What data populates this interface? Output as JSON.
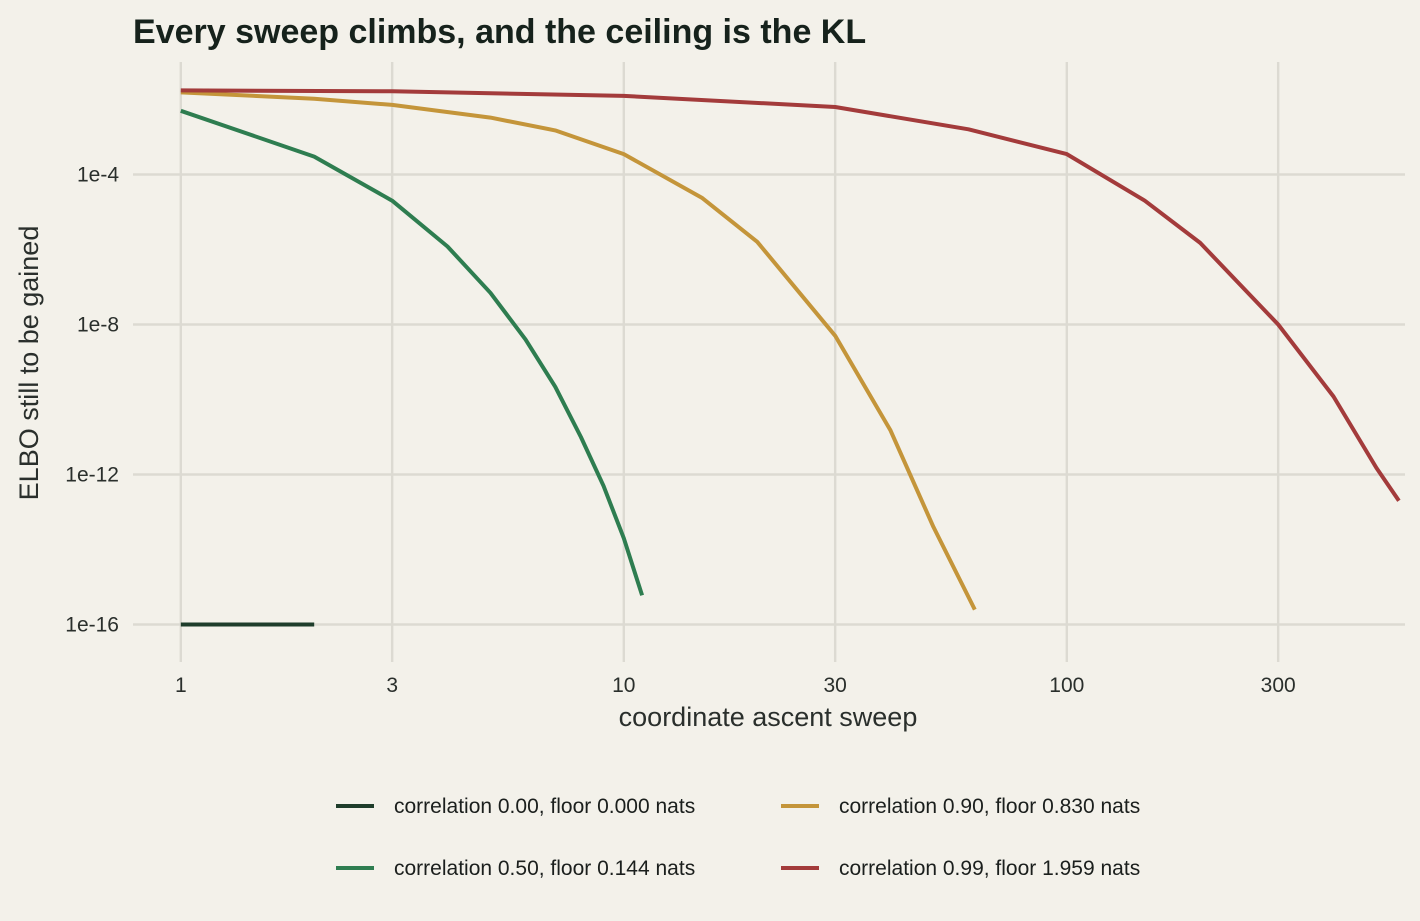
{
  "chart_data": {
    "type": "line",
    "title": "Every sweep climbs, and the ceiling is the KL",
    "xlabel": "coordinate ascent sweep",
    "ylabel": "ELBO still to be gained",
    "x_scale": "log",
    "y_scale": "log",
    "xlim": [
      0.78,
      580
    ],
    "ylim": [
      1e-17,
      0.1
    ],
    "x_ticks": [
      {
        "value": 1,
        "label": "1"
      },
      {
        "value": 3,
        "label": "3"
      },
      {
        "value": 10,
        "label": "10"
      },
      {
        "value": 30,
        "label": "30"
      },
      {
        "value": 100,
        "label": "100"
      },
      {
        "value": 300,
        "label": "300"
      }
    ],
    "y_ticks": [
      {
        "value": 0.0001,
        "label": "1e-4"
      },
      {
        "value": 1e-08,
        "label": "1e-8"
      },
      {
        "value": 1e-12,
        "label": "1e-12"
      },
      {
        "value": 1e-16,
        "label": "1e-16"
      }
    ],
    "grid": true,
    "legend_position": "bottom",
    "series": [
      {
        "name": "correlation 0.00, floor 0.000 nats",
        "color": "#1e3d2b",
        "points": [
          [
            1,
            1e-16
          ],
          [
            2,
            1e-16
          ]
        ]
      },
      {
        "name": "correlation 0.50, floor 0.144 nats",
        "color": "#2e7d50",
        "points": [
          [
            1,
            0.005
          ],
          [
            2,
            0.0003
          ],
          [
            3,
            2e-05
          ],
          [
            4,
            1.2e-06
          ],
          [
            5,
            7e-08
          ],
          [
            6,
            4e-09
          ],
          [
            7,
            2.2e-10
          ],
          [
            8,
            1e-11
          ],
          [
            9,
            5e-13
          ],
          [
            10,
            2e-14
          ],
          [
            11,
            6e-16
          ]
        ]
      },
      {
        "name": "correlation 0.90, floor 0.830 nats",
        "color": "#c4953a",
        "points": [
          [
            1,
            0.0155
          ],
          [
            2,
            0.0105
          ],
          [
            3,
            0.0072
          ],
          [
            5,
            0.0033
          ],
          [
            7,
            0.0015
          ],
          [
            10,
            0.00035
          ],
          [
            15,
            2.4e-05
          ],
          [
            20,
            1.6e-06
          ],
          [
            30,
            5e-09
          ],
          [
            40,
            1.5e-11
          ],
          [
            50,
            4e-14
          ],
          [
            62,
            2.5e-16
          ]
        ]
      },
      {
        "name": "correlation 0.99, floor 1.959 nats",
        "color": "#a33b3b",
        "points": [
          [
            1,
            0.0175
          ],
          [
            3,
            0.0165
          ],
          [
            10,
            0.0125
          ],
          [
            30,
            0.0063
          ],
          [
            60,
            0.0016
          ],
          [
            100,
            0.00035
          ],
          [
            150,
            2e-05
          ],
          [
            200,
            1.5e-06
          ],
          [
            300,
            1e-08
          ],
          [
            400,
            1.2e-10
          ],
          [
            500,
            1.5e-12
          ],
          [
            562,
            2e-13
          ]
        ]
      }
    ]
  }
}
